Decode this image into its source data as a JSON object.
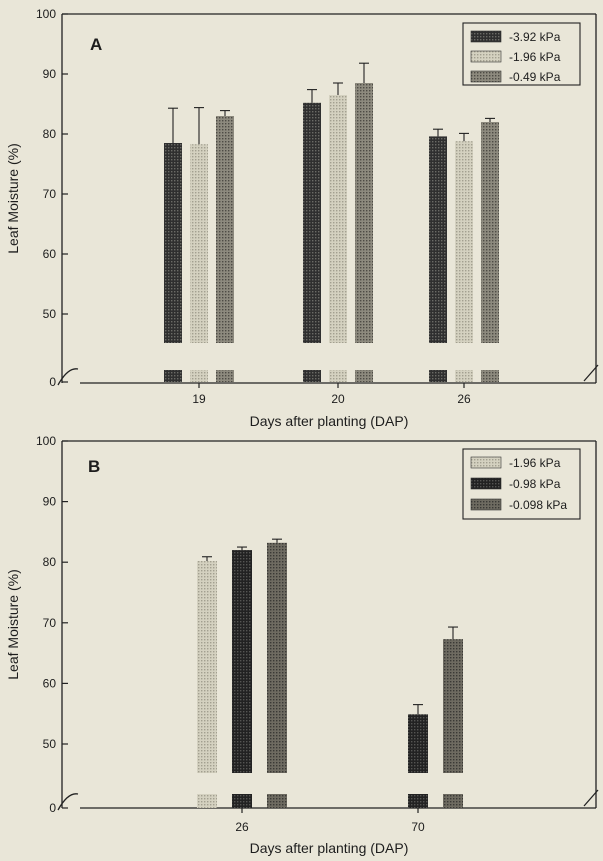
{
  "chart_data": [
    {
      "type": "bar",
      "panel": "A",
      "xlabel": "Days after planting (DAP)",
      "ylabel": "Leaf Moisture (%)",
      "categories": [
        "19",
        "20",
        "26"
      ],
      "yticks": [
        "0",
        "50",
        "60",
        "70",
        "80",
        "90",
        "100"
      ],
      "ylim": [
        45,
        100
      ],
      "axis_break": true,
      "series": [
        {
          "name": "-3.92 kPa",
          "values": [
            78.5,
            85.2,
            79.6
          ],
          "errors": [
            5.8,
            2.2,
            1.2
          ],
          "color": "#3b3b3b"
        },
        {
          "name": "-1.96 kPa",
          "values": [
            78.3,
            86.5,
            78.8
          ],
          "errors": [
            6.1,
            2.0,
            1.3
          ],
          "color": "#c9c6b5"
        },
        {
          "name": "-0.49 kPa",
          "values": [
            83.0,
            88.5,
            82.0
          ],
          "errors": [
            0.9,
            3.3,
            0.6
          ],
          "color": "#838074"
        }
      ],
      "legend_position": "top-right",
      "grid": false
    },
    {
      "type": "bar",
      "panel": "B",
      "xlabel": "Days after planting (DAP)",
      "ylabel": "Leaf Moisture (%)",
      "categories": [
        "26",
        "70"
      ],
      "yticks": [
        "0",
        "50",
        "60",
        "70",
        "80",
        "90",
        "100"
      ],
      "ylim": [
        45,
        100
      ],
      "axis_break": true,
      "series": [
        {
          "name": "-1.96 kPa",
          "values": [
            80.2,
            null
          ],
          "errors": [
            0.7,
            null
          ],
          "color": "#c9c6b5"
        },
        {
          "name": "-0.98 kPa",
          "values": [
            82.0,
            54.9
          ],
          "errors": [
            0.5,
            1.6
          ],
          "color": "#2d2d2d"
        },
        {
          "name": "-0.098 kPa",
          "values": [
            83.2,
            67.3
          ],
          "errors": [
            0.6,
            2.0
          ],
          "color": "#6f6c62"
        }
      ],
      "legend_position": "top-right",
      "grid": false
    }
  ]
}
